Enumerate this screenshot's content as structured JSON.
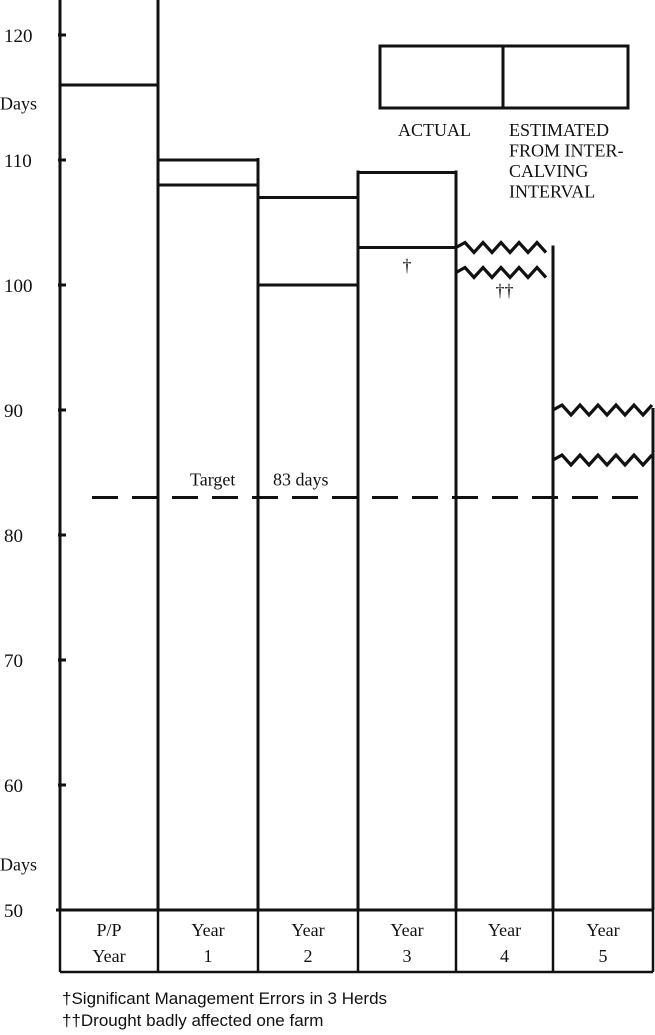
{
  "chart_data": {
    "type": "bar",
    "categories": [
      [
        "P/P",
        "Year"
      ],
      [
        "Year",
        "1"
      ],
      [
        "Year",
        "2"
      ],
      [
        "Year",
        "3"
      ],
      [
        "Year",
        "4"
      ],
      [
        "Year",
        "5"
      ]
    ],
    "series": [
      {
        "name": "ACTUAL",
        "values": [
          116,
          108,
          100,
          103,
          101,
          86
        ]
      },
      {
        "name": "ESTIMATED FROM INTER- CALVING INTERVAL",
        "values": [
          123,
          110,
          107,
          109,
          103,
          90
        ]
      }
    ],
    "estimated_lines": [
      "ESTIMATED",
      "FROM INTER-",
      "CALVING",
      "INTERVAL"
    ],
    "wavy_values": [
      4,
      5
    ],
    "marks": [
      {
        "category": 3,
        "text": "†"
      },
      {
        "category": 4,
        "text": "††"
      }
    ],
    "ylabel": "Days",
    "ylim": [
      50,
      123
    ],
    "yticks": [
      50,
      60,
      70,
      80,
      90,
      100,
      110,
      120
    ],
    "target": {
      "value": 83,
      "label": "Target 83 days"
    },
    "legend_position": "top-right",
    "footnotes": [
      "†Significant Management Errors in 3 Herds",
      "††Drought badly affected one farm"
    ]
  }
}
